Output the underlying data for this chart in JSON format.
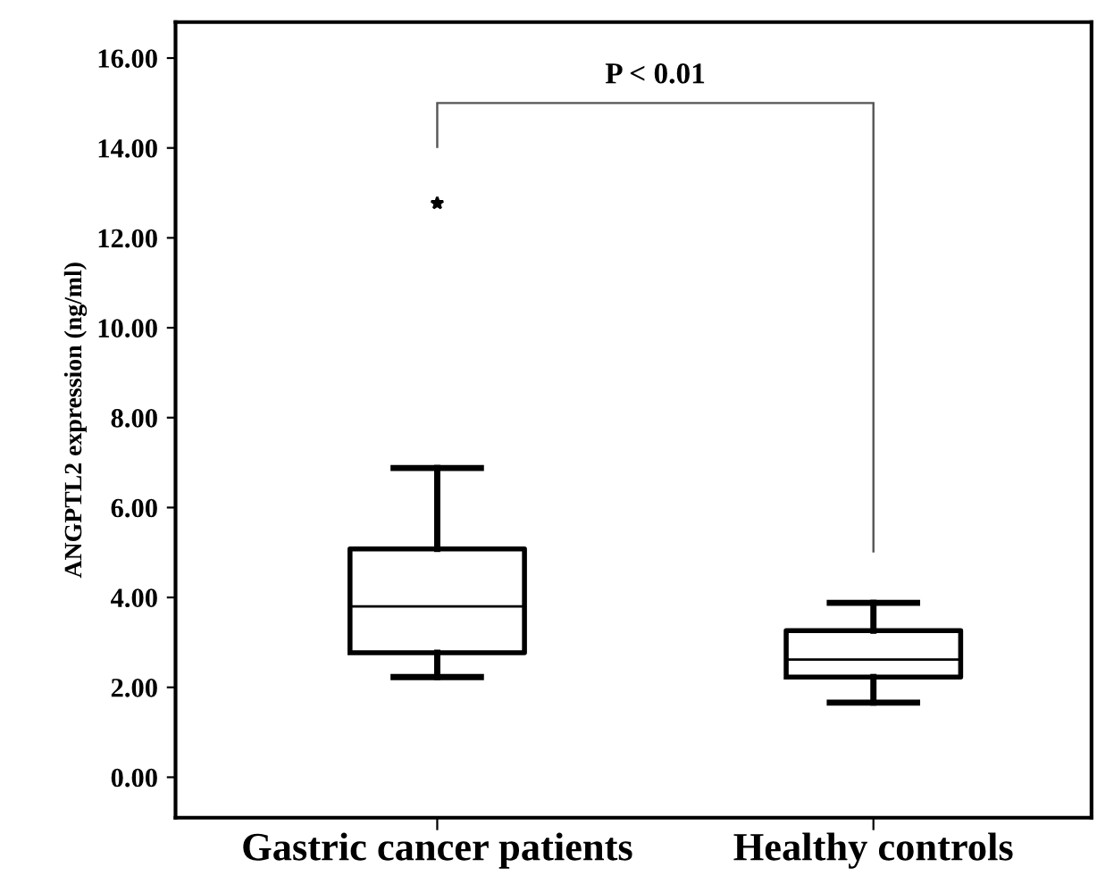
{
  "chart_data": {
    "type": "box",
    "ylabel": "ANGPTL2 expression (ng/ml)",
    "categories": [
      "Gastric cancer patients",
      "Healthy controls"
    ],
    "boxes": [
      {
        "low": 2.23,
        "q1": 2.77,
        "median": 3.8,
        "q3": 5.08,
        "high": 6.88,
        "outliers": [
          12.77
        ]
      },
      {
        "low": 1.66,
        "q1": 2.23,
        "median": 2.62,
        "q3": 3.26,
        "high": 3.88
      }
    ],
    "ylim": [
      -0.9,
      16.8
    ],
    "yticks": [
      {
        "value": 0,
        "label": "0.00"
      },
      {
        "value": 2,
        "label": "2.00"
      },
      {
        "value": 4,
        "label": "4.00"
      },
      {
        "value": 6,
        "label": "6.00"
      },
      {
        "value": 8,
        "label": "8.00"
      },
      {
        "value": 10,
        "label": "10.00"
      },
      {
        "value": 12,
        "label": "12.00"
      },
      {
        "value": 14,
        "label": "14.00"
      },
      {
        "value": 16,
        "label": "16.00"
      }
    ],
    "annotations": [
      "P < 0.01"
    ],
    "grid": false,
    "marker": "star"
  }
}
